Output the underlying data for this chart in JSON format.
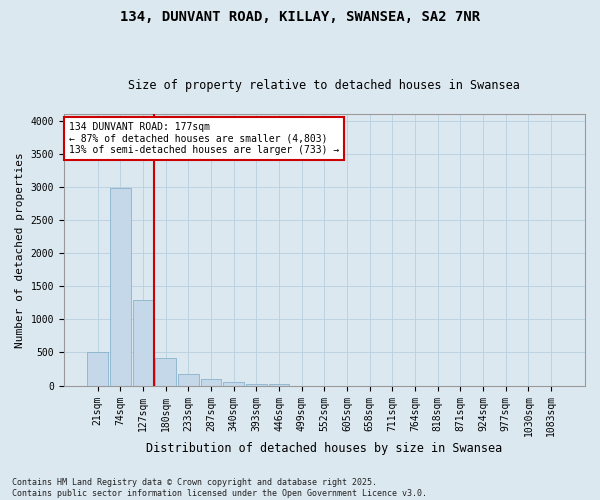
{
  "title": "134, DUNVANT ROAD, KILLAY, SWANSEA, SA2 7NR",
  "subtitle": "Size of property relative to detached houses in Swansea",
  "xlabel": "Distribution of detached houses by size in Swansea",
  "ylabel": "Number of detached properties",
  "footer_line1": "Contains HM Land Registry data © Crown copyright and database right 2025.",
  "footer_line2": "Contains public sector information licensed under the Open Government Licence v3.0.",
  "categories": [
    "21sqm",
    "74sqm",
    "127sqm",
    "180sqm",
    "233sqm",
    "287sqm",
    "340sqm",
    "393sqm",
    "446sqm",
    "499sqm",
    "552sqm",
    "605sqm",
    "658sqm",
    "711sqm",
    "764sqm",
    "818sqm",
    "871sqm",
    "924sqm",
    "977sqm",
    "1030sqm",
    "1083sqm"
  ],
  "values": [
    510,
    2980,
    1290,
    420,
    175,
    95,
    50,
    30,
    20,
    0,
    0,
    0,
    0,
    0,
    0,
    0,
    0,
    0,
    0,
    0,
    0
  ],
  "bar_color": "#c5d8ea",
  "bar_edge_color": "#7baac7",
  "grid_color": "#b8cfe0",
  "bg_color": "#dce8f0",
  "fig_bg_color": "#dce8f0",
  "vline_color": "#cc0000",
  "vline_x": 2.5,
  "annotation_text": "134 DUNVANT ROAD: 177sqm\n← 87% of detached houses are smaller (4,803)\n13% of semi-detached houses are larger (733) →",
  "annotation_box_color": "#cc0000",
  "ylim": [
    0,
    4100
  ],
  "yticks": [
    0,
    500,
    1000,
    1500,
    2000,
    2500,
    3000,
    3500,
    4000
  ],
  "title_fontsize": 10,
  "subtitle_fontsize": 8.5,
  "tick_fontsize": 7,
  "ylabel_fontsize": 8,
  "xlabel_fontsize": 8.5,
  "annotation_fontsize": 7,
  "footer_fontsize": 6
}
